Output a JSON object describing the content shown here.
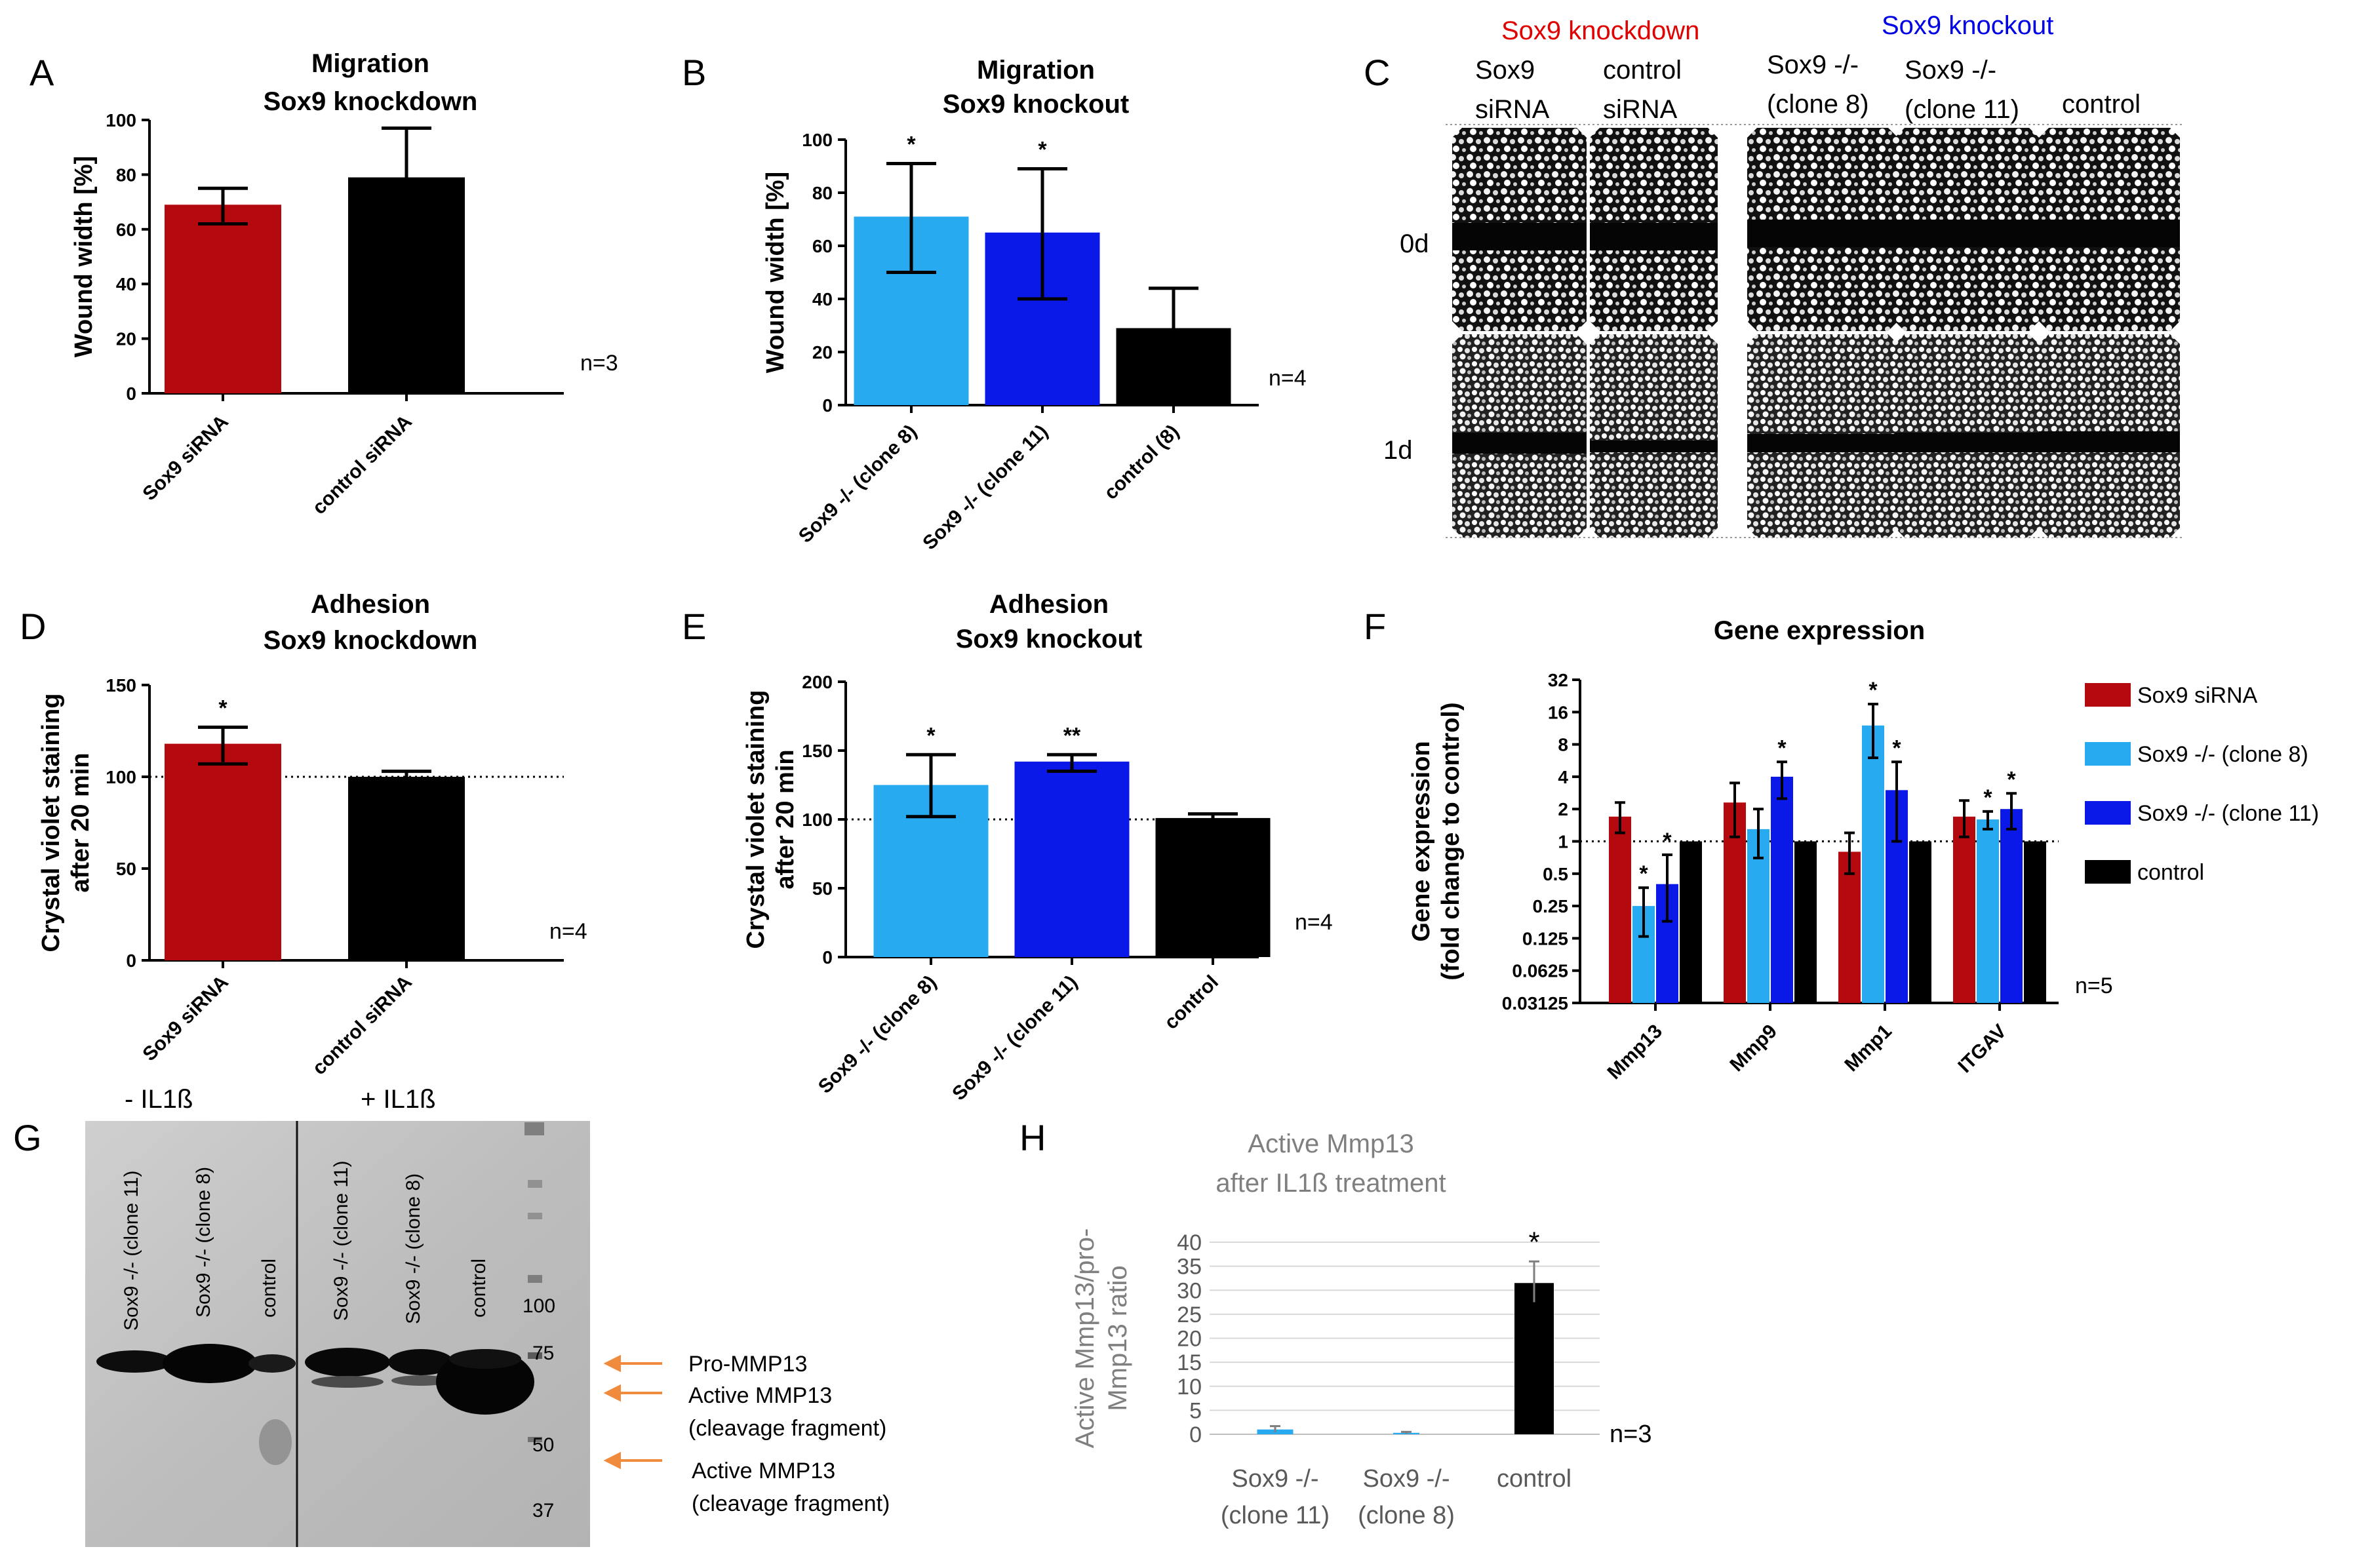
{
  "colors": {
    "red": "#b4090e",
    "lightblue": "#28aaf0",
    "blue": "#0a18e8",
    "black": "#000000",
    "orange": "#f08a3c",
    "gray": "#7f7f7f"
  },
  "panels": {
    "A": "A",
    "B": "B",
    "C": "C",
    "D": "D",
    "E": "E",
    "F": "F",
    "G": "G",
    "H": "H"
  },
  "chart_data": [
    {
      "id": "A",
      "type": "bar",
      "title": "Migration",
      "subtitle": "Sox9 knockdown",
      "ylabel": "Wound width [%]",
      "categories": [
        "Sox9 siRNA",
        "control siRNA"
      ],
      "values": [
        69,
        79
      ],
      "err_lo": [
        7,
        18
      ],
      "err_hi": [
        6,
        18
      ],
      "bar_colors": [
        "#b4090e",
        "#000000"
      ],
      "ylim": [
        0,
        100
      ],
      "yticks": [
        "0",
        "20",
        "40",
        "60",
        "80",
        "100"
      ],
      "stars": [
        "",
        ""
      ],
      "n": "n=3",
      "ref_line": null
    },
    {
      "id": "B",
      "type": "bar",
      "title": "Migration",
      "subtitle": "Sox9 knockout",
      "ylabel": "Wound width [%]",
      "categories": [
        "Sox9 -/- (clone 8)",
        "Sox9 -/- (clone 11)",
        "control (8)"
      ],
      "values": [
        71,
        65,
        29
      ],
      "err_lo": [
        21,
        25,
        15
      ],
      "err_hi": [
        20,
        24,
        15
      ],
      "bar_colors": [
        "#28aaf0",
        "#0a18e8",
        "#000000"
      ],
      "ylim": [
        0,
        100
      ],
      "yticks": [
        "0",
        "20",
        "40",
        "60",
        "80",
        "100"
      ],
      "stars": [
        "*",
        "*",
        ""
      ],
      "n": "n=4",
      "ref_line": null
    },
    {
      "id": "D",
      "type": "bar",
      "title": "Adhesion",
      "subtitle": "Sox9 knockdown",
      "ylabel": [
        "Crystal violet staining",
        "after 20 min"
      ],
      "categories": [
        "Sox9 siRNA",
        "control siRNA"
      ],
      "values": [
        118,
        100
      ],
      "err_lo": [
        11,
        3
      ],
      "err_hi": [
        9,
        3
      ],
      "bar_colors": [
        "#b4090e",
        "#000000"
      ],
      "ylim": [
        0,
        150
      ],
      "yticks": [
        "0",
        "50",
        "100",
        "150"
      ],
      "stars": [
        "*",
        ""
      ],
      "n": "n=4",
      "ref_line": 100
    },
    {
      "id": "E",
      "type": "bar",
      "title": "Adhesion",
      "subtitle": "Sox9 knockout",
      "ylabel": [
        "Crystal violet staining",
        "after 20 min"
      ],
      "categories": [
        "Sox9 -/- (clone 8)",
        "Sox9 -/- (clone 11)",
        "control"
      ],
      "values": [
        125,
        142,
        101
      ],
      "err_lo": [
        23,
        7,
        3
      ],
      "err_hi": [
        22,
        5,
        3
      ],
      "bar_colors": [
        "#28aaf0",
        "#0a18e8",
        "#000000"
      ],
      "ylim": [
        0,
        200
      ],
      "yticks": [
        "0",
        "50",
        "100",
        "150",
        "200"
      ],
      "stars": [
        "*",
        "**",
        ""
      ],
      "n": "n=4",
      "ref_line": 100
    },
    {
      "id": "F",
      "type": "bar",
      "scale": "log2",
      "title": "Gene expression",
      "ylabel": [
        "Gene expression",
        "(fold change to control)"
      ],
      "categories": [
        "Mmp13",
        "Mmp9",
        "Mmp1",
        "ITGAV"
      ],
      "yticks": [
        "32",
        "16",
        "8",
        "4",
        "2",
        "1",
        "0.5",
        "0.25",
        "0.125",
        "0.0625",
        "0.03125"
      ],
      "ylim": [
        0.03125,
        32
      ],
      "ref_line": 1,
      "series": [
        {
          "name": "Sox9 siRNA",
          "color": "#b4090e",
          "values": [
            1.7,
            2.3,
            0.8,
            1.7
          ],
          "err_lo": [
            0.5,
            1.2,
            0.3,
            0.6
          ],
          "err_hi": [
            0.6,
            1.2,
            0.4,
            0.7
          ],
          "stars": [
            "",
            "",
            "",
            ""
          ]
        },
        {
          "name": "Sox9 -/- (clone 8)",
          "color": "#28aaf0",
          "values": [
            0.25,
            1.3,
            12,
            1.6
          ],
          "err_lo": [
            0.12,
            0.6,
            6,
            0.3
          ],
          "err_hi": [
            0.12,
            0.7,
            7,
            0.3
          ],
          "stars": [
            "*",
            "",
            "*",
            "*"
          ]
        },
        {
          "name": "Sox9 -/- (clone 11)",
          "color": "#0a18e8",
          "values": [
            0.4,
            4,
            3,
            2
          ],
          "err_lo": [
            0.22,
            1.5,
            2,
            0.7
          ],
          "err_hi": [
            0.35,
            1.5,
            2.5,
            0.8
          ],
          "stars": [
            "*",
            "*",
            "*",
            "*"
          ]
        },
        {
          "name": "control",
          "color": "#000000",
          "values": [
            1,
            1,
            1,
            1
          ],
          "err_lo": [
            0,
            0,
            0,
            0
          ],
          "err_hi": [
            0,
            0,
            0,
            0
          ],
          "stars": [
            "",
            "",
            "",
            ""
          ]
        }
      ],
      "n": "n=5"
    },
    {
      "id": "H",
      "type": "bar",
      "title": "Active Mmp13",
      "subtitle": "after IL1ß treatment",
      "ylabel": [
        "Active Mmp13/pro-",
        "Mmp13 ratio"
      ],
      "categories": [
        [
          "Sox9 -/-",
          "(clone 11)"
        ],
        [
          "Sox9 -/-",
          "(clone 8)"
        ],
        [
          "control"
        ]
      ],
      "values": [
        1,
        0.3,
        31.5
      ],
      "err_lo": [
        0.6,
        0.2,
        4
      ],
      "err_hi": [
        0.7,
        0.2,
        4.5
      ],
      "bar_colors": [
        "#28aaf0",
        "#28aaf0",
        "#000000"
      ],
      "ylim": [
        0,
        40
      ],
      "yticks": [
        "0",
        "5",
        "10",
        "15",
        "20",
        "25",
        "30",
        "35",
        "40"
      ],
      "stars": [
        "",
        "",
        "*"
      ],
      "n": "n=3"
    }
  ],
  "panelC": {
    "title_knockdown": "Sox9 knockdown",
    "title_knockout": "Sox9 knockout",
    "col1": [
      "Sox9",
      "siRNA"
    ],
    "col2": [
      "control",
      "siRNA"
    ],
    "col3": [
      "Sox9 -/-",
      "(clone 8)"
    ],
    "col4": [
      "Sox9 -/-",
      "(clone 11)"
    ],
    "col5": "control",
    "row1": "0d",
    "row2": "1d"
  },
  "panelG": {
    "minus": "- IL1ß",
    "plus": "+ IL1ß",
    "lanes": [
      "Sox9 -/- (clone 11)",
      "Sox9 -/- (clone 8)",
      "control",
      "Sox9 -/- (clone 11)",
      "Sox9 -/- (clone 8)",
      "control"
    ],
    "markers": [
      "100",
      "75",
      "50",
      "37"
    ],
    "ann1": "Pro-MMP13",
    "ann2a": "Active MMP13",
    "ann2b": "(cleavage fragment)",
    "ann3a": "Active MMP13",
    "ann3b": "(cleavage fragment)"
  }
}
